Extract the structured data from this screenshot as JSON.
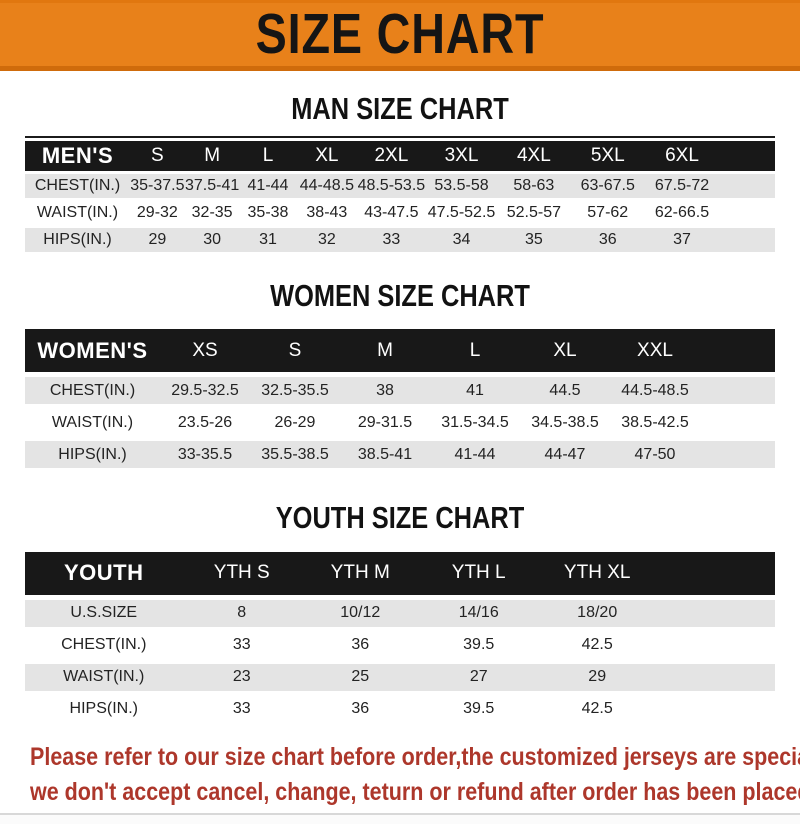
{
  "banner": {
    "title": "SIZE CHART"
  },
  "sections": {
    "men": {
      "title": "MAN SIZE CHART",
      "header": [
        "MEN'S",
        "S",
        "M",
        "L",
        "XL",
        "2XL",
        "3XL",
        "4XL",
        "5XL",
        "6XL"
      ],
      "rows": [
        [
          "CHEST(IN.)",
          "35-37.5",
          "37.5-41",
          "41-44",
          "44-48.5",
          "48.5-53.5",
          "53.5-58",
          "58-63",
          "63-67.5",
          "67.5-72"
        ],
        [
          "WAIST(IN.)",
          "29-32",
          "32-35",
          "35-38",
          "38-43",
          "43-47.5",
          "47.5-52.5",
          "52.5-57",
          "57-62",
          "62-66.5"
        ],
        [
          "HIPS(IN.)",
          "29",
          "30",
          "31",
          "32",
          "33",
          "34",
          "35",
          "36",
          "37"
        ]
      ]
    },
    "women": {
      "title": "WOMEN SIZE CHART",
      "header": [
        "WOMEN'S",
        "XS",
        "S",
        "M",
        "L",
        "XL",
        "XXL"
      ],
      "rows": [
        [
          "CHEST(IN.)",
          "29.5-32.5",
          "32.5-35.5",
          "38",
          "41",
          "44.5",
          "44.5-48.5"
        ],
        [
          "WAIST(IN.)",
          "23.5-26",
          "26-29",
          "29-31.5",
          "31.5-34.5",
          "34.5-38.5",
          "38.5-42.5"
        ],
        [
          "HIPS(IN.)",
          "33-35.5",
          "35.5-38.5",
          "38.5-41",
          "41-44",
          "44-47",
          "47-50"
        ]
      ]
    },
    "youth": {
      "title": "YOUTH SIZE CHART",
      "header": [
        "YOUTH",
        "YTH S",
        "YTH M",
        "YTH L",
        "YTH XL"
      ],
      "rows": [
        [
          "U.S.SIZE",
          "8",
          "10/12",
          "14/16",
          "18/20"
        ],
        [
          "CHEST(IN.)",
          "33",
          "36",
          "39.5",
          "42.5"
        ],
        [
          "WAIST(IN.)",
          "23",
          "25",
          "27",
          "29"
        ],
        [
          "HIPS(IN.)",
          "33",
          "36",
          "39.5",
          "42.5"
        ]
      ]
    }
  },
  "footer": {
    "line1": "Please refer to our size chart before order,the customized jerseys are special products,",
    "line2": "we don't accept cancel, change, teturn or refund after order has been placed!"
  },
  "colors": {
    "banner_orange": "#e8811a",
    "header_bar_black": "#181818",
    "row_shade_gray": "#e4e4e4",
    "notice_red": "#ad372b"
  }
}
